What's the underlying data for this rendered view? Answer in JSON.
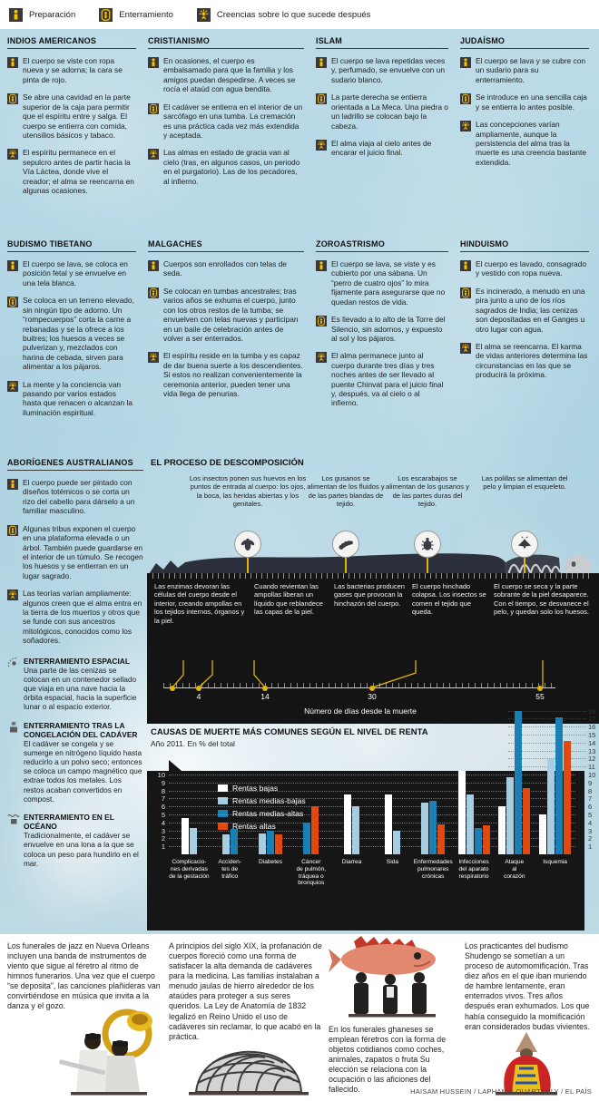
{
  "legend": {
    "items": [
      {
        "icon": "preparation-icon",
        "label": "Preparación"
      },
      {
        "icon": "burial-icon",
        "label": "Enterramiento"
      },
      {
        "icon": "beliefs-icon",
        "label": "Creencias sobre lo que sucede después"
      }
    ]
  },
  "sections": [
    {
      "title": "INDIOS AMERICANOS",
      "entries": [
        {
          "icon": "preparation",
          "text": "El cuerpo se viste con ropa nueva y se adorna; la cara se pinta de rojo."
        },
        {
          "icon": "burial",
          "text": "Se abre una cavidad en la parte superior de la caja para permitir que el espíritu entre y salga. El cuerpo se entierra con comida, utensilios básicos y tabaco."
        },
        {
          "icon": "beliefs",
          "text": "El espíritu permanece en el sepulcro antes de partir hacia la Vía Láctea, donde vive el creador; el alma se reencarna en algunas ocasiones."
        }
      ]
    },
    {
      "title": "CRISTIANISMO",
      "entries": [
        {
          "icon": "preparation",
          "text": "En ocasiones, el cuerpo es embalsamado para que la familia y los amigos puedan despedirse. A veces se rocía el ataúd con agua bendita."
        },
        {
          "icon": "burial",
          "text": "El cadáver se entierra en el interior de un sarcófago en una tumba. La cremación es una práctica cada vez más extendida y aceptada."
        },
        {
          "icon": "beliefs",
          "text": "Las almas en estado de gracia van al cielo (tras, en algunos casos, un periodo en el purgatorio). Las de los pecadores, al infierno."
        }
      ]
    },
    {
      "title": "ISLAM",
      "entries": [
        {
          "icon": "preparation",
          "text": "El cuerpo se lava repetidas veces y, perfumado, se envuelve con un sudario blanco."
        },
        {
          "icon": "burial",
          "text": "La parte derecha se entierra orientada a La Meca. Una piedra o un ladrillo se colocan bajo la cabeza."
        },
        {
          "icon": "beliefs",
          "text": "El alma viaja al cielo antes de encarar el juicio final."
        }
      ]
    },
    {
      "title": "JUDAÍSMO",
      "entries": [
        {
          "icon": "preparation",
          "text": "El cuerpo se lava y se cubre con un sudario para su enterramiento."
        },
        {
          "icon": "burial",
          "text": "Se introduce en una sencilla caja y se entierra lo antes posible."
        },
        {
          "icon": "beliefs",
          "text": "Las concepciones varían ampliamente, aunque la persistencia del alma tras la muerte es una creencia bastante extendida."
        }
      ]
    },
    {
      "title": "BUDISMO TIBETANO",
      "entries": [
        {
          "icon": "preparation",
          "text": "El cuerpo se lava, se coloca en posición fetal y se envuelve en una tela blanca."
        },
        {
          "icon": "burial",
          "text": "Se coloca en un terreno elevado, sin ningún tipo de adorno. Un “rompecuerpos” corta la carne a rebanadas y se la ofrece a los buitres; los huesos a veces se pulverizan y, mezclados con harina de cebada, sirven para alimentar a los pájaros."
        },
        {
          "icon": "beliefs",
          "text": "La mente y la conciencia van pasando por varios estados hasta que renacen o alcanzan la iluminación espiritual."
        }
      ]
    },
    {
      "title": "MALGACHES",
      "entries": [
        {
          "icon": "preparation",
          "text": "Cuerpos son enrollados con telas de seda."
        },
        {
          "icon": "burial",
          "text": "Se colocan en tumbas ancestrales; tras varios años se exhuma el cuerpo, junto con los otros restos de la tumba; se envuelven con telas nuevas y participan en un baile de celebración antes de volver a ser enterrados."
        },
        {
          "icon": "beliefs",
          "text": "El espíritu reside en la tumba y es capaz de dar buena suerte a los descendientes. Si estos no realizan convenientemente la ceremonia anterior, pueden tener una vida llega de penurias."
        }
      ]
    },
    {
      "title": "ZOROASTRISMO",
      "entries": [
        {
          "icon": "preparation",
          "text": "El cuerpo se lava, se viste y es cubierto por una sábana. Un “perro de cuatro ojos” lo mira fijamente para asegurarse que no quedan restos de vida."
        },
        {
          "icon": "burial",
          "text": "Es llevado a lo alto de la Torre del Silencio, sin adornos, y expuesto al sol y los pájaros."
        },
        {
          "icon": "beliefs",
          "text": "El alma permanece junto al cuerpo durante tres días y tres noches antes de ser llevado al puente Chinvat para el juicio final y, después, va al cielo o al infierno."
        }
      ]
    },
    {
      "title": "HINDUISMO",
      "entries": [
        {
          "icon": "preparation",
          "text": "El cuerpo es lavado, consagrado y vestido con ropa nueva."
        },
        {
          "icon": "burial",
          "text": "Es incinerado, a menudo en una pira junto a uno de los ríos sagrados de India; las cenizas son depositadas en el Ganges u otro lugar con agua."
        },
        {
          "icon": "beliefs",
          "text": "El alma se reencarna. El karma de vidas anteriores determina las circunstancias en las que se producirá la próxima."
        }
      ]
    },
    {
      "title": "ABORÍGENES AUSTRALIANOS",
      "entries": [
        {
          "icon": "preparation",
          "text": "El cuerpo puede ser pintado con diseños totémicos o se corta un rizo del cabello para dárselo a un familiar masculino."
        },
        {
          "icon": "burial",
          "text": "Algunas tribus exponen el cuerpo en una plataforma elevada o un árbol. También puede guardarse en el interior de un túmulo. Se recogen los huesos y se entierran en un lugar sagrado."
        },
        {
          "icon": "beliefs",
          "text": "Las teorías varían ampliamente: algunos creen que el alma entra en la tierra de los muertos y otros que se funde con sus ancestros mitológicos, conocidos como los soñadores."
        }
      ]
    }
  ],
  "burial_methods": [
    {
      "icon": "space-burial-icon",
      "title": "ENTERRAMIENTO ESPACIAL",
      "text": "Una parte de las cenizas se colocan en un contenedor sellado que viaja en una nave hacia la órbita espacial, hacia la superficie lunar o al espacio exterior."
    },
    {
      "icon": "cryo-burial-icon",
      "title": "ENTERRAMIENTO TRAS LA CONGELACIÓN DEL CADÁVER",
      "text": "El cadáver se congela y se sumerge en nitrógeno líquido hasta reducirlo a un polvo seco; entonces se coloca un campo magnético que extrae todos los metales. Los restos acaban convertidos en compost."
    },
    {
      "icon": "ocean-burial-icon",
      "title": "ENTERRAMIENTO EN EL OCÉANO",
      "text": "Tradicionalmente, el cadáver se envuelve en una lona a la que se coloca un peso para hundirlo en el mar."
    }
  ],
  "decomposition": {
    "title": "EL PROCESO DE DESCOMPOSICIÓN",
    "stages_top": [
      {
        "icon": "fly-icon",
        "text": "Los insectos ponen sus huevos en los puntos de entrada al cuerpo: los ojos, la boca, las heridas abiertas y los genitales."
      },
      {
        "icon": "maggot-icon",
        "text": "Los gusanos se alimentan de los fluidos y de las partes blandas de tejido."
      },
      {
        "icon": "beetle-icon",
        "text": "Los escarabajos se alimentan de los gusanos y de las partes duras del tejido."
      },
      {
        "icon": "moth-icon",
        "text": "Las polillas se alimentan del pelo y limpian el esqueleto."
      }
    ],
    "stages_bottom": [
      "Las enzimas devoran las células del cuerpo desde el interior, creando ampollas en los tejidos internos, órganos y la piel.",
      "Cuando revientan las ampollas liberan un líquido que reblandece las capas de la piel.",
      "Las bacterias producen gases que provocan la hinchazón del cuerpo.",
      "El cuerpo hinchado colapsa. Los insectos se comen el tejido que queda.",
      "El cuerpo se seca y la parte sobrante de la piel desaparece. Con el tiempo, se desvanece el pelo, y quedan solo los huesos."
    ],
    "timeline": {
      "ticks": [
        "4",
        "14",
        "30",
        "55"
      ],
      "axis_label": "Número de días desde la muerte"
    }
  },
  "chart_data": {
    "type": "bar",
    "title": "CAUSAS DE MUERTE MÁS COMUNES SEGÚN EL NIVEL DE RENTA",
    "subtitle": "Año 2011. En % del total",
    "categories": [
      "Complicaciones derivadas de la gestación",
      "Accidentes de tráfico",
      "Diabetes",
      "Cáncer de pulmón, tráquea o bronquios",
      "Diarrea",
      "Sida",
      "Enfermedades pulmonares crónicas",
      "Infecciones del aparato respiratorio",
      "Ataque al corazón",
      "Isquemia"
    ],
    "categories_display": [
      "Complicacio-\nnes derivadas\nde la gestación",
      "Acciden-\ntes de\ntráfico",
      "Diabetes",
      "Cáncer\nde pulmón,\ntráquea o\nbronquios",
      "Diarrea",
      "Sida",
      "Enfermedades\npulmonares\ncrónicas",
      "Infecciones\ndel aparato\nrespiratorio",
      "Ataque\nal\ncorazón",
      "Isquemia"
    ],
    "series": [
      {
        "name": "Rentas bajas",
        "color": "#ffffff",
        "values": [
          4.5,
          null,
          null,
          null,
          7.5,
          7.5,
          null,
          10.5,
          6,
          5
        ]
      },
      {
        "name": "Rentas medias-bajas",
        "color": "#a6cde2",
        "values": [
          3.3,
          2.5,
          2.6,
          null,
          6,
          3,
          6.5,
          7.5,
          9.7,
          11.9
        ]
      },
      {
        "name": "Rentas medias-altas",
        "color": "#1a7fb5",
        "values": [
          null,
          3.2,
          2.9,
          4,
          null,
          null,
          6.7,
          3.3,
          18,
          17.2
        ]
      },
      {
        "name": "Rentas altas",
        "color": "#e1490f",
        "values": [
          null,
          null,
          2.5,
          6,
          null,
          null,
          3.7,
          3.6,
          8.3,
          14.2
        ]
      }
    ],
    "ylabel": "",
    "xlabel": "",
    "ylim": [
      0,
      18
    ],
    "yticks_left": [
      1,
      2,
      3,
      4,
      5,
      6,
      7,
      8,
      9,
      10
    ],
    "yticks_right": [
      1,
      2,
      3,
      4,
      5,
      6,
      7,
      8,
      9,
      10,
      11,
      12,
      13,
      14,
      15,
      16,
      17,
      18
    ],
    "grid": "dotted",
    "legend_position": "top-left-inside"
  },
  "footer": {
    "jazz": "Los funerales de jazz en Nueva Orleans incluyen una banda de instrumentos de viento que sigue al féretro al ritmo de himnos funerarios. Una vez que el cuerpo “se deposita”, las canciones plañideras van convirtiéndose en música que invita a la danza y el gozo.",
    "graverobbing": "A principios del siglo XIX, la profanación de cuerpos floreció como una forma de satisfacer la alta demanda de cadáveres para la medicina. Las familias instalaban a menudo jaulas de hierro alrededor de los ataúdes para proteger a sus seres queridos. La Ley de Anatomía de 1832 legalizó en Reino Unido el uso de cadáveres sin reclamar, lo que acabó en la práctica.",
    "ghana": "En los funerales ghaneses se emplean féretros con la forma de objetos cotidianos como coches, animales, zapatos o fruta Su elección se relaciona con la ocupación o las aficiones del fallecido.",
    "shudengo": "Los practicantes del budismo Shudengo se sometían a un proceso de automomificación. Tras diez años en el que iban muriendo de hambre lentamente, eran enterrados vivos. Tres años después eran exhumados. Los que había conseguido la momificación eran considerados budas vivientes."
  },
  "credit": "HAISAM HUSSEIN / LAPHAM'S QUARTERLY / EL PAÍS"
}
